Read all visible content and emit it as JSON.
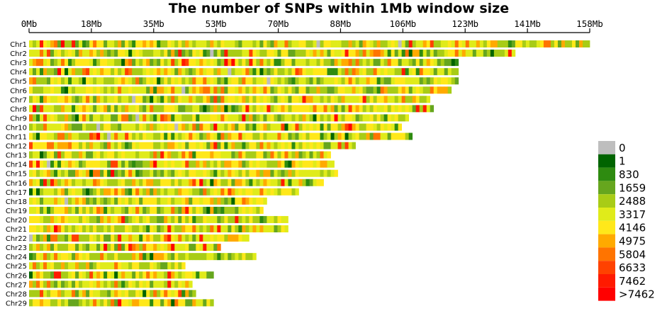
{
  "chart_data": {
    "type": "heatmap",
    "title": "The number of SNPs within 1Mb window size",
    "x_unit": "Mb",
    "x_ticks": [
      "0Mb",
      "18Mb",
      "35Mb",
      "53Mb",
      "70Mb",
      "88Mb",
      "106Mb",
      "123Mb",
      "141Mb",
      "158Mb"
    ],
    "xlim": [
      0,
      158
    ],
    "window_size_mb": 1,
    "chromosomes": [
      {
        "name": "Chr1",
        "length_mb": 158
      },
      {
        "name": "Chr2",
        "length_mb": 137
      },
      {
        "name": "Chr3",
        "length_mb": 121
      },
      {
        "name": "Chr4",
        "length_mb": 121
      },
      {
        "name": "Chr5",
        "length_mb": 121
      },
      {
        "name": "Chr6",
        "length_mb": 119
      },
      {
        "name": "Chr7",
        "length_mb": 113
      },
      {
        "name": "Chr8",
        "length_mb": 114
      },
      {
        "name": "Chr9",
        "length_mb": 107
      },
      {
        "name": "Chr10",
        "length_mb": 105
      },
      {
        "name": "Chr11",
        "length_mb": 108
      },
      {
        "name": "Chr12",
        "length_mb": 92
      },
      {
        "name": "Chr13",
        "length_mb": 85
      },
      {
        "name": "Chr14",
        "length_mb": 86
      },
      {
        "name": "Chr15",
        "length_mb": 87
      },
      {
        "name": "Chr16",
        "length_mb": 83
      },
      {
        "name": "Chr17",
        "length_mb": 76
      },
      {
        "name": "Chr18",
        "length_mb": 67
      },
      {
        "name": "Chr19",
        "length_mb": 66
      },
      {
        "name": "Chr20",
        "length_mb": 73
      },
      {
        "name": "Chr21",
        "length_mb": 73
      },
      {
        "name": "Chr22",
        "length_mb": 62
      },
      {
        "name": "Chr23",
        "length_mb": 54
      },
      {
        "name": "Chr24",
        "length_mb": 64
      },
      {
        "name": "Chr25",
        "length_mb": 44
      },
      {
        "name": "Chr26",
        "length_mb": 52
      },
      {
        "name": "Chr27",
        "length_mb": 46
      },
      {
        "name": "Chr28",
        "length_mb": 47
      },
      {
        "name": "Chr29",
        "length_mb": 52
      }
    ],
    "legend": [
      {
        "label": "0",
        "color": "#bebebe"
      },
      {
        "label": "1",
        "color": "#006400"
      },
      {
        "label": "830",
        "color": "#2e8b10"
      },
      {
        "label": "1659",
        "color": "#66a61e"
      },
      {
        "label": "2488",
        "color": "#a8cc16"
      },
      {
        "label": "3317",
        "color": "#e0eb1a"
      },
      {
        "label": "4146",
        "color": "#ffe81a"
      },
      {
        "label": "4975",
        "color": "#ffaa00"
      },
      {
        "label": "5804",
        "color": "#ff7400"
      },
      {
        "label": "6633",
        "color": "#ff4200"
      },
      {
        "label": "7462",
        "color": "#ff1a00"
      },
      {
        "label": ">7462",
        "color": "#ff0000"
      }
    ],
    "legend_position": "right",
    "grid": false
  }
}
